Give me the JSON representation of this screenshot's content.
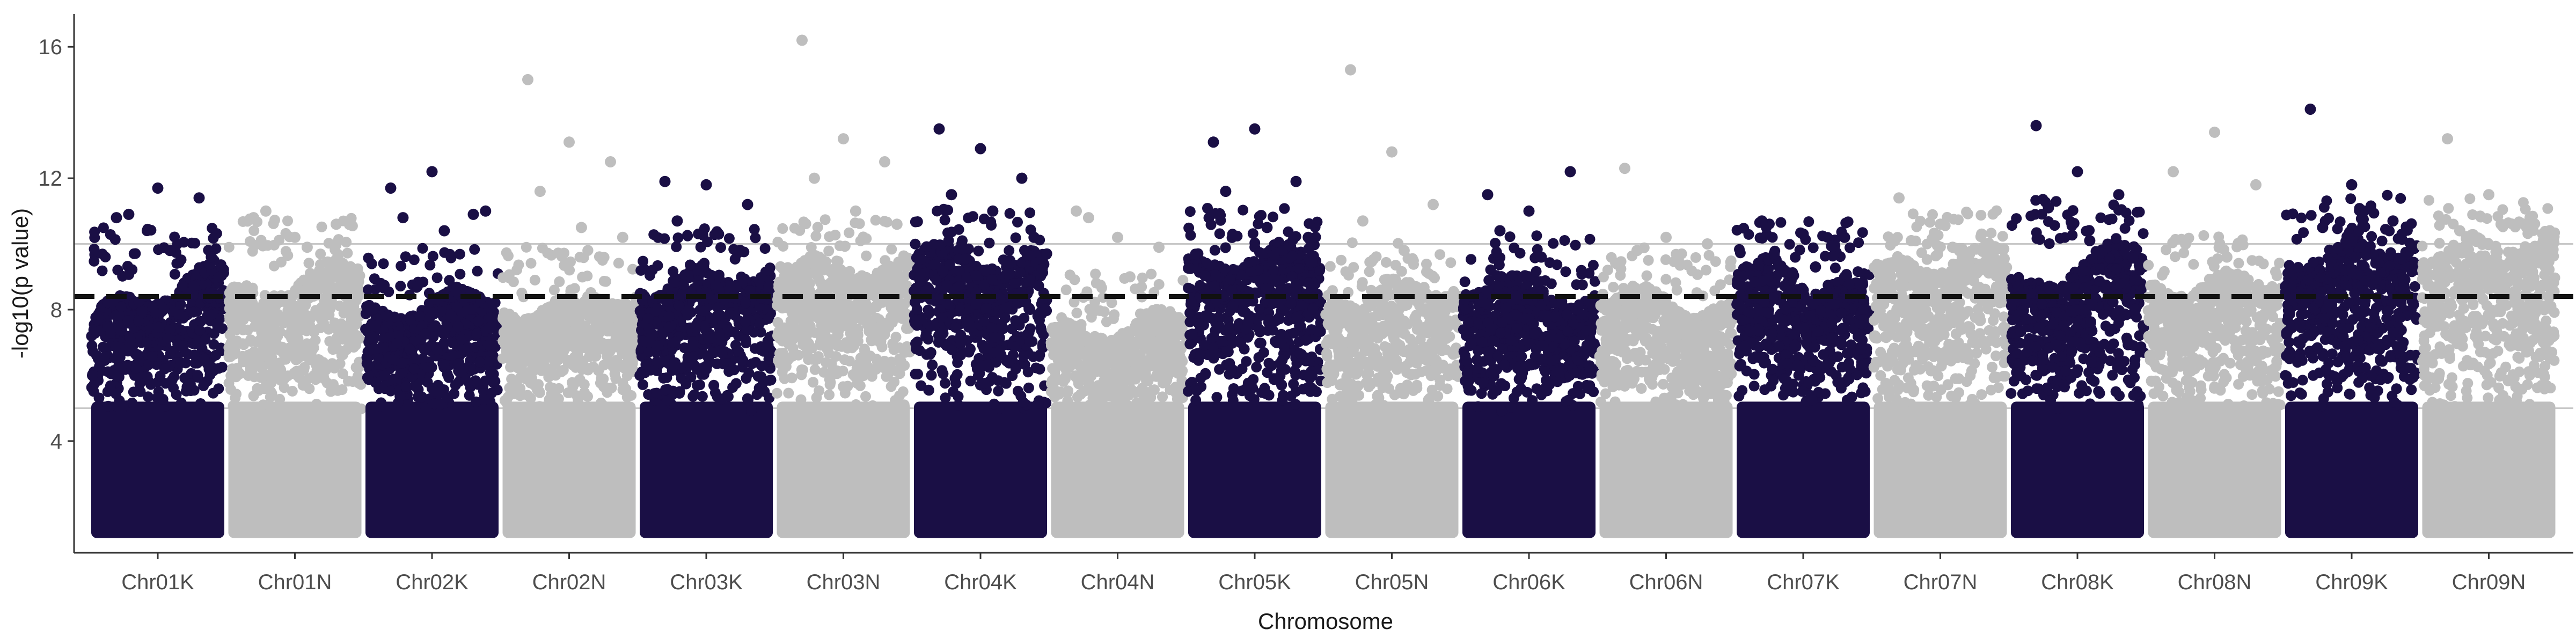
{
  "chart_data": {
    "type": "scatter",
    "title": "",
    "xlabel": "Chromosome",
    "ylabel": "-log10(p value)",
    "categories": [
      "Chr01K",
      "Chr01N",
      "Chr02K",
      "Chr02N",
      "Chr03K",
      "Chr03N",
      "Chr04K",
      "Chr04N",
      "Chr05K",
      "Chr05N",
      "Chr06K",
      "Chr06N",
      "Chr07K",
      "Chr07N",
      "Chr08K",
      "Chr08N",
      "Chr09K",
      "Chr09N"
    ],
    "yticks": [
      4,
      8,
      12,
      16
    ],
    "ylim": [
      0.6,
      17.0
    ],
    "grid": false,
    "legend": "none",
    "colors": {
      "odd": "#1a0f45",
      "even": "#bebebe",
      "threshold_line": "#111111",
      "ref_line": "#c8c8c8"
    },
    "threshold_dashed": 8.4,
    "reference_lines": [
      5,
      10
    ],
    "series": [
      {
        "name": "",
        "color": "#1a0f45",
        "dense_top": [
          7.8,
          9.3
        ],
        "top_hits": [
          10.8,
          11.7,
          11.4,
          10.9,
          9.8,
          9.6
        ]
      },
      {
        "name": "",
        "color": "#bebebe",
        "dense_top": [
          8.3,
          9.5
        ],
        "top_hits": [
          10.8,
          10.2,
          10.6,
          11.0,
          9.9
        ]
      },
      {
        "name": "",
        "color": "#1a0f45",
        "dense_top": [
          7.9,
          8.6
        ],
        "top_hits": [
          11.7,
          12.2,
          10.9,
          10.8,
          10.4,
          11.0
        ]
      },
      {
        "name": "",
        "color": "#bebebe",
        "dense_top": [
          8.0,
          8.6
        ],
        "top_hits": [
          15.0,
          13.1,
          12.5,
          11.6,
          10.5,
          10.2
        ]
      },
      {
        "name": "",
        "color": "#1a0f45",
        "dense_top": [
          8.8,
          9.2
        ],
        "top_hits": [
          11.9,
          11.8,
          11.2,
          10.7,
          10.3
        ]
      },
      {
        "name": "",
        "color": "#bebebe",
        "dense_top": [
          9.3,
          9.5
        ],
        "top_hits": [
          16.2,
          13.2,
          12.5,
          12.0,
          11.0,
          10.6
        ]
      },
      {
        "name": "",
        "color": "#1a0f45",
        "dense_top": [
          9.8,
          9.5
        ],
        "top_hits": [
          13.5,
          12.9,
          12.0,
          11.5,
          11.0,
          10.2
        ]
      },
      {
        "name": "",
        "color": "#bebebe",
        "dense_top": [
          7.2,
          7.8
        ],
        "top_hits": [
          11.0,
          10.2,
          9.9,
          10.8,
          9.0
        ]
      },
      {
        "name": "",
        "color": "#1a0f45",
        "dense_top": [
          9.5,
          9.8
        ],
        "top_hits": [
          13.1,
          13.5,
          11.9,
          11.6,
          10.5,
          10.2
        ]
      },
      {
        "name": "",
        "color": "#bebebe",
        "dense_top": [
          8.4,
          8.8
        ],
        "top_hits": [
          15.3,
          12.8,
          11.2,
          10.7,
          9.8
        ]
      },
      {
        "name": "",
        "color": "#1a0f45",
        "dense_top": [
          9.0,
          8.4
        ],
        "top_hits": [
          11.5,
          11.0,
          12.2,
          10.4,
          9.6
        ]
      },
      {
        "name": "",
        "color": "#bebebe",
        "dense_top": [
          8.6,
          8.0
        ],
        "top_hits": [
          12.3,
          10.2,
          10.0,
          9.8,
          9.5
        ]
      },
      {
        "name": "",
        "color": "#1a0f45",
        "dense_top": [
          9.4,
          8.8
        ],
        "top_hits": [
          10.7,
          10.3,
          10.2,
          9.7,
          9.3
        ]
      },
      {
        "name": "",
        "color": "#bebebe",
        "dense_top": [
          9.2,
          9.8
        ],
        "top_hits": [
          11.4,
          10.6,
          10.3,
          10.1,
          9.9
        ]
      },
      {
        "name": "",
        "color": "#1a0f45",
        "dense_top": [
          8.6,
          10.1
        ],
        "top_hits": [
          13.6,
          12.2,
          11.5,
          11.1,
          10.1
        ]
      },
      {
        "name": "",
        "color": "#bebebe",
        "dense_top": [
          8.7,
          9.0
        ],
        "top_hits": [
          12.2,
          13.4,
          11.8,
          10.0,
          9.6
        ]
      },
      {
        "name": "",
        "color": "#1a0f45",
        "dense_top": [
          9.6,
          10.2
        ],
        "top_hits": [
          14.1,
          11.8,
          10.7,
          10.5,
          11.0
        ]
      },
      {
        "name": "",
        "color": "#bebebe",
        "dense_top": [
          9.8,
          10.2
        ],
        "top_hits": [
          13.2,
          11.5,
          10.8,
          10.4,
          10.6
        ]
      }
    ]
  }
}
